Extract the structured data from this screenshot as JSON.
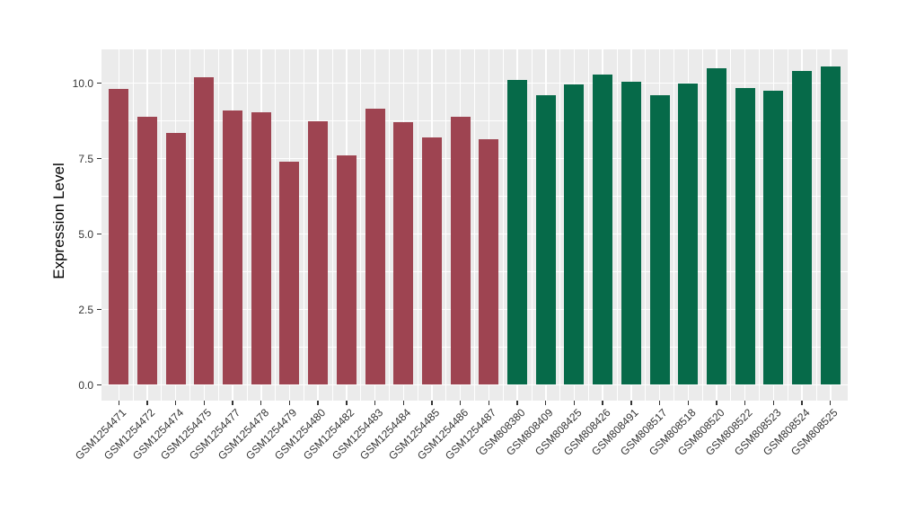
{
  "chart_data": {
    "type": "bar",
    "title": "",
    "xlabel": "",
    "ylabel": "Expression Level",
    "ylim": [
      -0.55,
      11.12
    ],
    "grid": "major and minor horizontal white gridlines; vertical white gridlines at category centers and midpoints",
    "legend": "none",
    "y_axis_ticks": [
      {
        "value": 0,
        "label": "0.0"
      },
      {
        "value": 2.5,
        "label": "2.5"
      },
      {
        "value": 5,
        "label": "5.0"
      },
      {
        "value": 7.5,
        "label": "7.5"
      },
      {
        "value": 10,
        "label": "10.0"
      }
    ],
    "y_minor_gridlines": [
      1.25,
      3.75,
      6.25,
      8.75
    ],
    "categories": [
      "GSM1254471",
      "GSM1254472",
      "GSM1254474",
      "GSM1254475",
      "GSM1254477",
      "GSM1254478",
      "GSM1254479",
      "GSM1254480",
      "GSM1254482",
      "GSM1254483",
      "GSM1254484",
      "GSM1254485",
      "GSM1254486",
      "GSM1254487",
      "GSM808380",
      "GSM808409",
      "GSM808425",
      "GSM808426",
      "GSM808491",
      "GSM808517",
      "GSM808518",
      "GSM808520",
      "GSM808522",
      "GSM808523",
      "GSM808524",
      "GSM808525"
    ],
    "values": [
      9.8,
      8.9,
      8.35,
      10.2,
      9.1,
      9.05,
      7.4,
      8.75,
      7.6,
      9.15,
      8.7,
      8.2,
      8.9,
      8.15,
      10.1,
      9.6,
      9.95,
      10.3,
      10.05,
      9.6,
      10.0,
      10.5,
      9.85,
      9.75,
      10.4,
      10.55
    ],
    "bar_groups": [
      "group1",
      "group1",
      "group1",
      "group1",
      "group1",
      "group1",
      "group1",
      "group1",
      "group1",
      "group1",
      "group1",
      "group1",
      "group1",
      "group1",
      "group2",
      "group2",
      "group2",
      "group2",
      "group2",
      "group2",
      "group2",
      "group2",
      "group2",
      "group2",
      "group2",
      "group2"
    ],
    "group_colors": {
      "group1": "#9E4451",
      "group2": "#066A49"
    },
    "colors": {
      "figure_background": "#FFFFFF",
      "panel_background": "#EBEBEB",
      "gridline": "#FFFFFF",
      "axis_text": "#333333",
      "axis_title": "#000000",
      "tick_mark": "#333333"
    }
  }
}
